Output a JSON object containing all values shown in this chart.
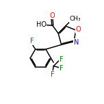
{
  "background_color": "#ffffff",
  "bond_color": "#000000",
  "atom_colors": {
    "O": "#ff0000",
    "N": "#0000ff",
    "F": "#008000",
    "C": "#000000",
    "H": "#000000"
  },
  "line_width": 1.1,
  "font_size": 7.0,
  "figsize": [
    1.52,
    1.52
  ],
  "dpi": 100
}
